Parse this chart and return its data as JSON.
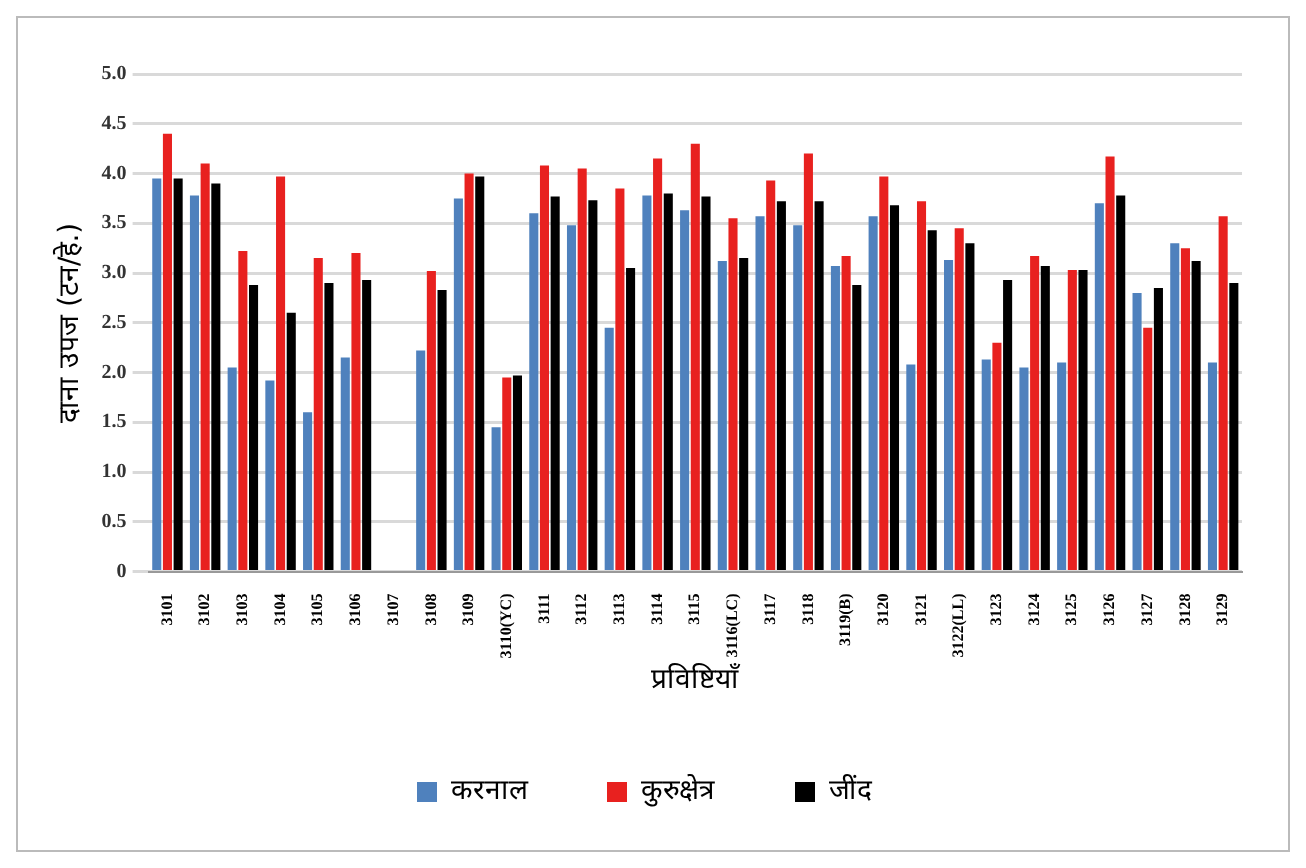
{
  "chart_data": {
    "type": "bar",
    "xlabel": "प्रविष्टियाँ",
    "ylabel": "दाना उपज (टन/हे.)",
    "categories": [
      "3101",
      "3102",
      "3103",
      "3104",
      "3105",
      "3106",
      "3107",
      "3108",
      "3109",
      "3110(YC)",
      "3111",
      "3112",
      "3113",
      "3114",
      "3115",
      "3116(LC)",
      "3117",
      "3118",
      "3119(B)",
      "3120",
      "3121",
      "3122(LL)",
      "3123",
      "3124",
      "3125",
      "3126",
      "3127",
      "3128",
      "3129"
    ],
    "series": [
      {
        "name": "करनाल",
        "color": "#4f81bd",
        "values": [
          3.95,
          3.78,
          2.05,
          1.92,
          1.6,
          2.15,
          null,
          2.22,
          3.75,
          1.45,
          3.6,
          3.48,
          2.45,
          3.78,
          3.63,
          3.12,
          3.57,
          3.48,
          3.07,
          3.57,
          2.08,
          3.13,
          2.13,
          2.05,
          2.1,
          3.7,
          2.8,
          3.3,
          2.1
        ]
      },
      {
        "name": "कुरुक्षेत्र",
        "color": "#e8211f",
        "values": [
          4.4,
          4.1,
          3.22,
          3.97,
          3.15,
          3.2,
          null,
          3.02,
          4.0,
          1.95,
          4.08,
          4.05,
          3.85,
          4.15,
          4.3,
          3.55,
          3.93,
          4.2,
          3.17,
          3.97,
          3.72,
          3.45,
          2.3,
          3.17,
          3.03,
          4.17,
          2.45,
          3.25,
          3.57
        ]
      },
      {
        "name": "जींद",
        "color": "#000000",
        "values": [
          3.95,
          3.9,
          2.88,
          2.6,
          2.9,
          2.93,
          null,
          2.83,
          3.97,
          1.97,
          3.77,
          3.73,
          3.05,
          3.8,
          3.77,
          3.15,
          3.72,
          3.72,
          2.88,
          3.68,
          3.43,
          3.3,
          2.93,
          3.07,
          3.03,
          3.78,
          2.85,
          3.12,
          2.9
        ]
      }
    ],
    "ylim": [
      0,
      5
    ],
    "yticks": [
      0,
      0.5,
      {
        "value": 1,
        "label": "1.0"
      },
      1.5,
      {
        "value": 2,
        "label": "2.0"
      },
      2.5,
      {
        "value": 3,
        "label": "3.0"
      },
      3.5,
      {
        "value": 4,
        "label": "4.0"
      },
      4.5,
      {
        "value": 5,
        "label": "5.0"
      }
    ],
    "grid": "y",
    "legend": "bottom"
  }
}
